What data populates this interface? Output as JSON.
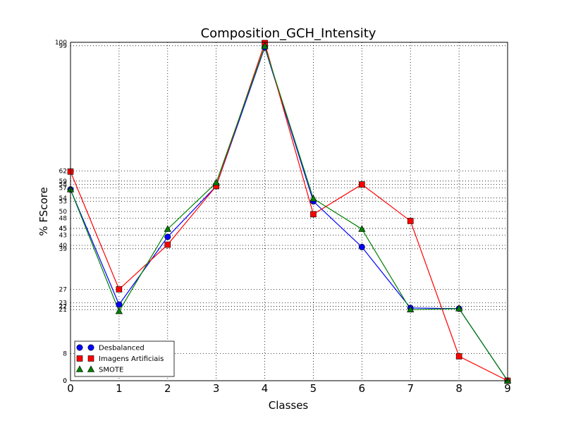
{
  "chart_data": {
    "type": "line",
    "title": "Composition_GCH_Intensity",
    "xlabel": "Classes",
    "ylabel": "% FScore",
    "x": [
      0,
      1,
      2,
      3,
      4,
      5,
      6,
      7,
      8,
      9
    ],
    "xlim": [
      0,
      9
    ],
    "ylim": [
      0,
      100
    ],
    "x_ticks": [
      "0",
      "1",
      "2",
      "3",
      "4",
      "5",
      "6",
      "7",
      "8",
      "9"
    ],
    "y_ticks": [
      "0",
      "0",
      "8",
      "21",
      "22",
      "22",
      "23",
      "27",
      "39",
      "40",
      "43",
      "45",
      "45",
      "48",
      "50",
      "53",
      "54",
      "57",
      "58",
      "59",
      "62",
      "99",
      "100"
    ],
    "grid": true,
    "legend_position": "lower-left",
    "series": [
      {
        "name": "Desbalanced",
        "color": "#0000ff",
        "marker": "circle",
        "values": [
          56.5,
          22.5,
          42.5,
          57.5,
          98.5,
          53,
          39.5,
          21.5,
          21.3,
          0
        ]
      },
      {
        "name": "Imagens Artificiais",
        "color": "#ff0000",
        "marker": "square",
        "values": [
          61.8,
          27,
          40.2,
          57.5,
          99.8,
          49.2,
          58,
          47.2,
          7.2,
          0
        ]
      },
      {
        "name": "SMOTE",
        "color": "#008000",
        "marker": "triangle",
        "values": [
          56.5,
          20.5,
          44.8,
          58.5,
          98.8,
          53.8,
          44.8,
          21,
          21.3,
          0
        ]
      }
    ]
  }
}
